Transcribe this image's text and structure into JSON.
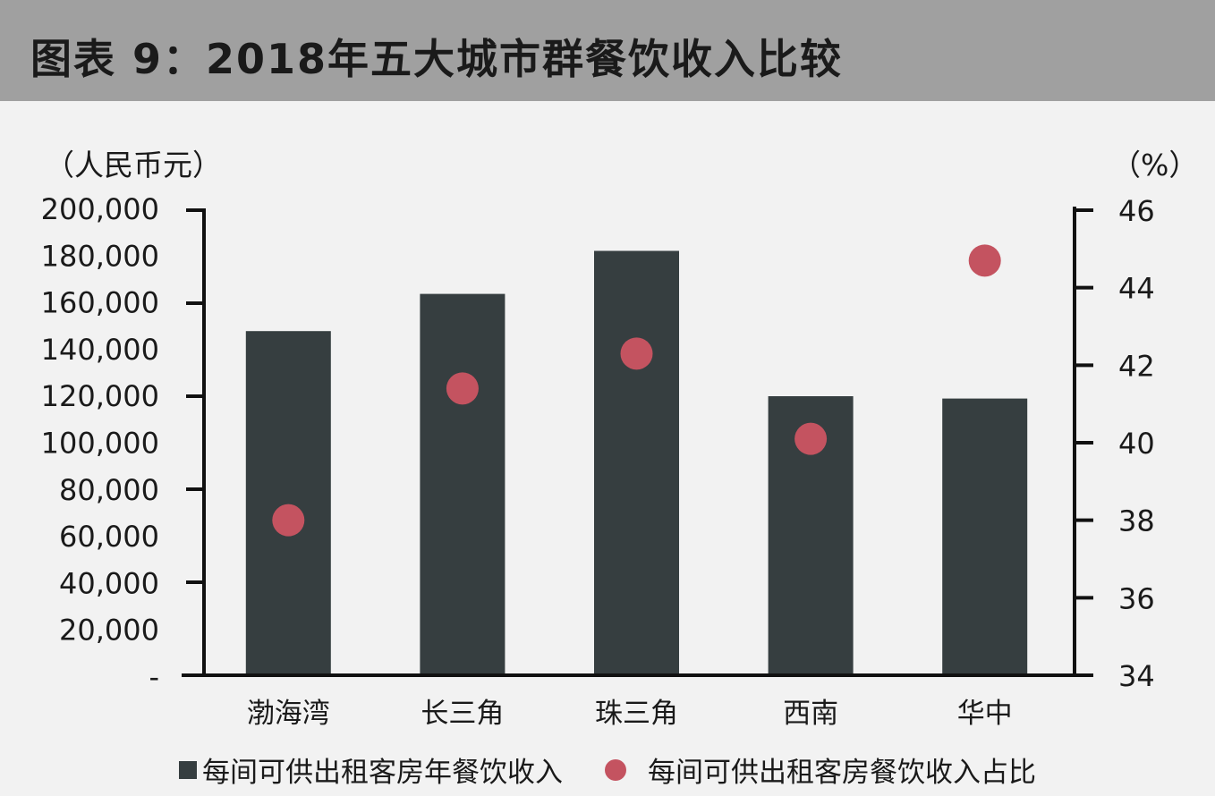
{
  "title": "图表 9：2018年五大城市群餐饮收入比较",
  "units": {
    "left": "（人民币元）",
    "right": "（%）"
  },
  "colors": {
    "bar": "#363e40",
    "dot": "#c45360",
    "axis": "#111111",
    "title_bg": "#a0a0a0"
  },
  "chart_data": {
    "type": "bar",
    "categories": [
      "渤海湾",
      "长三角",
      "珠三角",
      "西南",
      "华中"
    ],
    "series": [
      {
        "name": "每间可供出租客房年餐饮收入",
        "type": "bar",
        "axis": "left",
        "values": [
          148000,
          164000,
          182500,
          120000,
          119000
        ]
      },
      {
        "name": "每间可供出租客房餐饮收入占比",
        "type": "scatter",
        "axis": "right",
        "values": [
          38.0,
          41.4,
          42.3,
          40.1,
          44.7
        ]
      }
    ],
    "y_left": {
      "ylim": [
        0,
        200000
      ],
      "tick_labels": [
        "-",
        "20,000",
        "40,000",
        "60,000",
        "80,000",
        "100,000",
        "120,000",
        "140,000",
        "160,000",
        "180,000",
        "200,000"
      ]
    },
    "y_right": {
      "ylim": [
        34,
        46
      ],
      "tick_labels": [
        "34",
        "36",
        "38",
        "40",
        "42",
        "44",
        "46"
      ]
    },
    "legend_position": "bottom"
  }
}
